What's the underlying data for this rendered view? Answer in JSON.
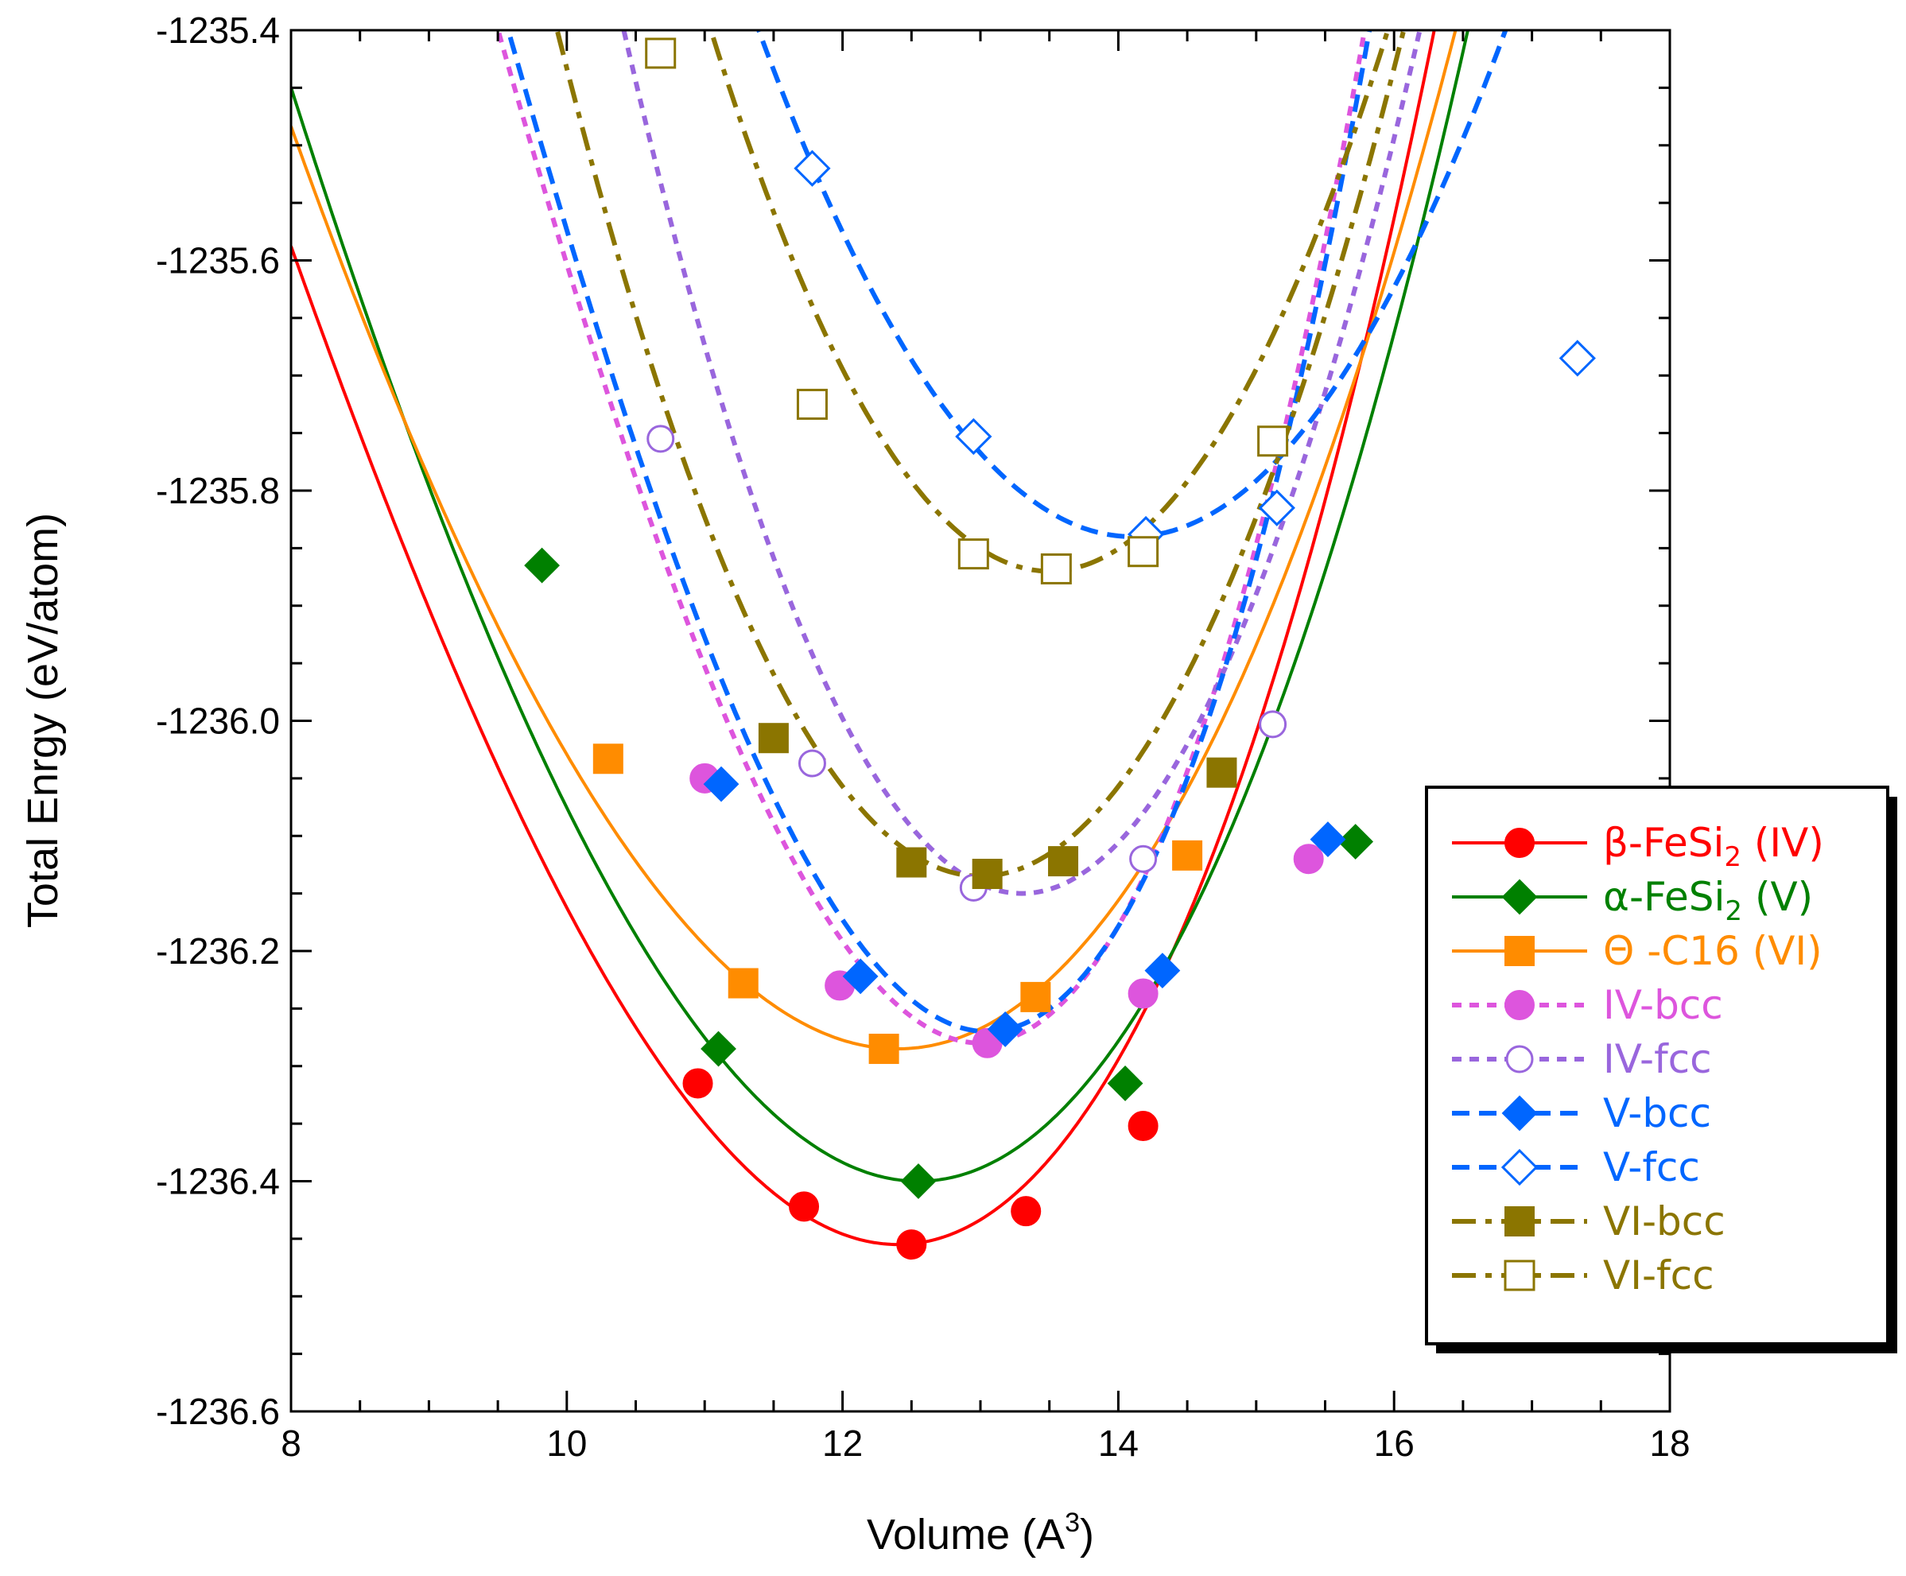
{
  "chart_data": {
    "type": "line",
    "title": "",
    "xlabel": "Volume (A",
    "xlabel_sup": "3",
    "xlabel_end": ")",
    "ylabel": "Total Enrgy (eV/atom)",
    "xlim": [
      8,
      18
    ],
    "ylim": [
      -1236.6,
      -1235.4
    ],
    "x_ticks": [
      8,
      10,
      12,
      14,
      16,
      18
    ],
    "x_tick_labels": [
      "8",
      "10",
      "12",
      "14",
      "16",
      "18"
    ],
    "y_ticks": [
      -1236.6,
      -1236.4,
      -1236.2,
      -1236.0,
      -1235.8,
      -1235.6,
      -1235.4
    ],
    "y_tick_labels": [
      "-1236.6",
      "-1236.4",
      "-1236.2",
      "-1236.0",
      "-1235.8",
      "-1235.6",
      "-1235.4"
    ],
    "grid": false,
    "legend_position": "right",
    "series": [
      {
        "name": "β-FeSi",
        "sub": "2",
        "tail": " (IV)",
        "color": "#ff0000",
        "dash": "solid",
        "marker": "circle",
        "filled": true,
        "fit": {
          "e0": -1236.455,
          "v0": 12.4,
          "a": 0.058,
          "b": 0.003
        },
        "x": [
          10.95,
          11.72,
          12.5,
          13.33,
          14.18
        ],
        "y": [
          -1236.315,
          -1236.422,
          -1236.455,
          -1236.426,
          -1236.352
        ]
      },
      {
        "name": "α-FeSi",
        "sub": "2",
        "tail": " (V)",
        "color": "#008000",
        "dash": "solid",
        "marker": "diamond",
        "filled": true,
        "fit": {
          "e0": -1236.4,
          "v0": 12.55,
          "a": 0.055,
          "b": 0.002
        },
        "x": [
          9.82,
          11.1,
          12.55,
          14.05,
          15.72
        ],
        "y": [
          -1235.865,
          -1236.285,
          -1236.4,
          -1236.315,
          -1236.105
        ]
      },
      {
        "name": "Θ -C16",
        "sub": "",
        "tail": " (VI)",
        "color": "#ff8c00",
        "dash": "solid",
        "marker": "square",
        "filled": true,
        "fit": {
          "e0": -1236.285,
          "v0": 12.4,
          "a": 0.048,
          "b": 0.0015
        },
        "x": [
          10.3,
          11.28,
          12.3,
          13.4,
          14.5
        ],
        "y": [
          -1236.033,
          -1236.228,
          -1236.285,
          -1236.24,
          -1236.117
        ]
      },
      {
        "name": "IV-bcc",
        "sub": "",
        "tail": "",
        "color": "#dd55dd",
        "dash": "dot",
        "marker": "circle",
        "filled": true,
        "fit": {
          "e0": -1236.28,
          "v0": 13.0,
          "a": 0.095,
          "b": 0.0066
        },
        "x": [
          11.0,
          11.98,
          13.05,
          14.18,
          15.38
        ],
        "y": [
          -1236.05,
          -1236.23,
          -1236.28,
          -1236.237,
          -1236.12
        ]
      },
      {
        "name": "IV-fcc",
        "sub": "",
        "tail": "",
        "color": "#9966dd",
        "dash": "dot",
        "marker": "circle",
        "filled": false,
        "fit": {
          "e0": -1236.15,
          "v0": 13.3,
          "a": 0.09,
          "b": 0.0
        },
        "x": [
          10.68,
          11.78,
          12.95,
          14.18,
          15.12
        ],
        "y": [
          -1235.755,
          -1236.037,
          -1236.145,
          -1236.12,
          -1236.003
        ]
      },
      {
        "name": "V-bcc",
        "sub": "",
        "tail": "",
        "color": "#0066ff",
        "dash": "dash",
        "marker": "diamond",
        "filled": true,
        "fit": {
          "e0": -1236.27,
          "v0": 13.05,
          "a": 0.095,
          "b": 0.0066
        },
        "x": [
          11.12,
          12.13,
          13.18,
          14.32,
          15.52
        ],
        "y": [
          -1236.055,
          -1236.222,
          -1236.268,
          -1236.217,
          -1236.103
        ]
      },
      {
        "name": "V-fcc",
        "sub": "",
        "tail": "",
        "color": "#0066ff",
        "dash": "dash",
        "marker": "diamond",
        "filled": false,
        "fit": {
          "e0": -1235.84,
          "v0": 14.1,
          "a": 0.06,
          "b": 0.0
        },
        "x": [
          11.78,
          12.95,
          14.2,
          15.15,
          17.33
        ],
        "y": [
          -1235.52,
          -1235.753,
          -1235.838,
          -1235.815,
          -1235.685
        ]
      },
      {
        "name": "VI-bcc",
        "sub": "",
        "tail": "",
        "color": "#8b7500",
        "dash": "dashdot",
        "marker": "square",
        "filled": true,
        "fit": {
          "e0": -1236.135,
          "v0": 13.0,
          "a": 0.078,
          "b": 0.0
        },
        "x": [
          11.5,
          12.5,
          13.05,
          13.6,
          14.75
        ],
        "y": [
          -1236.015,
          -1236.123,
          -1236.133,
          -1236.122,
          -1236.045
        ]
      },
      {
        "name": "VI-fcc",
        "sub": "",
        "tail": "",
        "color": "#8b7500",
        "dash": "dashdot",
        "marker": "square",
        "filled": false,
        "fit": {
          "e0": -1235.87,
          "v0": 13.5,
          "a": 0.078,
          "b": 0.0
        },
        "x": [
          10.68,
          11.78,
          12.95,
          13.55,
          14.18,
          15.12
        ],
        "y": [
          -1235.42,
          -1235.725,
          -1235.855,
          -1235.868,
          -1235.853,
          -1235.757
        ]
      }
    ]
  }
}
